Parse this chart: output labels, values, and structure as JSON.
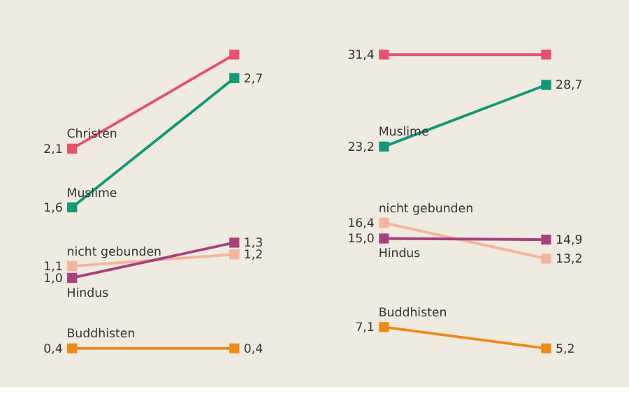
{
  "chart_data": [
    {
      "type": "line",
      "categories": [
        null,
        null
      ],
      "tick_labels": false,
      "grid": false,
      "legend": false,
      "marker": "square",
      "line_style": "solid",
      "series": [
        {
          "name": "Christen",
          "color": "#e8506e",
          "values": [
            2.1,
            2.9
          ],
          "value_labels": [
            "2,1",
            null
          ]
        },
        {
          "name": "Muslime",
          "color": "#0e9a78",
          "values": [
            1.6,
            2.7
          ],
          "value_labels": [
            "1,6",
            "2,7"
          ]
        },
        {
          "name": "nicht gebunden",
          "color": "#f6b49c",
          "values": [
            1.1,
            1.2
          ],
          "value_labels": [
            "1,1",
            "1,2"
          ]
        },
        {
          "name": "Hindus",
          "color": "#a8407e",
          "values": [
            1.0,
            1.3
          ],
          "value_labels": [
            "1,0",
            "1,3"
          ]
        },
        {
          "name": "Buddhisten",
          "color": "#f08a10",
          "values": [
            0.4,
            0.4
          ],
          "value_labels": [
            "0,4",
            "0,4"
          ]
        }
      ]
    },
    {
      "type": "line",
      "categories": [
        null,
        null
      ],
      "tick_labels": false,
      "grid": false,
      "legend": false,
      "marker": "square",
      "line_style": "solid",
      "series": [
        {
          "color": "#e8506e",
          "values": [
            31.4,
            31.4
          ],
          "value_labels": [
            "31,4",
            null
          ]
        },
        {
          "name": "Muslime",
          "color": "#0e9a78",
          "values": [
            23.2,
            28.7
          ],
          "value_labels": [
            "23,2",
            "28,7"
          ]
        },
        {
          "name": "nicht gebunden",
          "color": "#f6b49c",
          "values": [
            16.4,
            13.2
          ],
          "value_labels": [
            "16,4",
            "13,2"
          ]
        },
        {
          "name": "Hindus",
          "color": "#a8407e",
          "values": [
            15.0,
            14.9
          ],
          "value_labels": [
            "15,0",
            "14,9"
          ]
        },
        {
          "name": "Buddhisten",
          "color": "#f08a10",
          "values": [
            7.1,
            5.2
          ],
          "value_labels": [
            "7,1",
            "5,2"
          ]
        }
      ]
    }
  ]
}
